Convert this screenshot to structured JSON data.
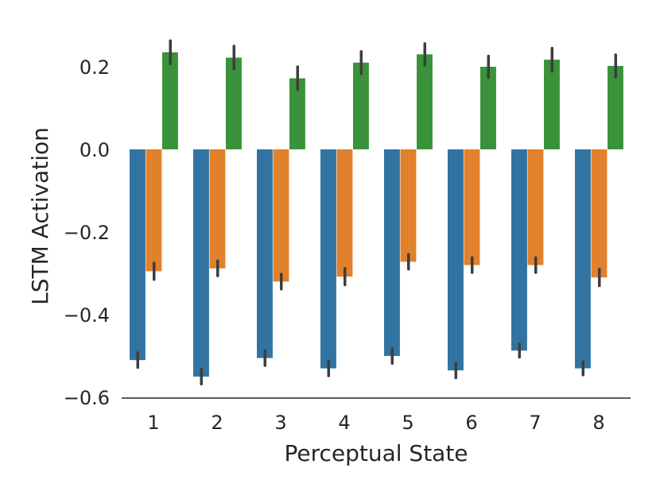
{
  "chart_data": {
    "type": "bar",
    "title": "",
    "xlabel": "Perceptual State",
    "ylabel": "LSTM Activation",
    "categories": [
      "1",
      "2",
      "3",
      "4",
      "5",
      "6",
      "7",
      "8"
    ],
    "ylim": [
      -0.6,
      0.3
    ],
    "yticks": [
      0.2,
      0.0,
      -0.2,
      -0.4,
      -0.6
    ],
    "ytick_labels": [
      "0.2",
      "0.0",
      "−0.2",
      "−0.4",
      "−0.6"
    ],
    "grid": false,
    "legend": "none",
    "error_bar_color": "#3d3d3d",
    "series": [
      {
        "name": "series-1",
        "color": "#3274a1",
        "values": [
          -0.51,
          -0.55,
          -0.505,
          -0.53,
          -0.5,
          -0.535,
          -0.487,
          -0.53
        ],
        "err_low": [
          -0.528,
          -0.568,
          -0.523,
          -0.548,
          -0.518,
          -0.553,
          -0.503,
          -0.546
        ],
        "err_high": [
          -0.492,
          -0.532,
          -0.487,
          -0.512,
          -0.482,
          -0.517,
          -0.471,
          -0.514
        ]
      },
      {
        "name": "series-2",
        "color": "#e1812c",
        "values": [
          -0.295,
          -0.288,
          -0.32,
          -0.308,
          -0.272,
          -0.28,
          -0.28,
          -0.31
        ],
        "err_low": [
          -0.315,
          -0.306,
          -0.338,
          -0.328,
          -0.29,
          -0.298,
          -0.298,
          -0.33
        ],
        "err_high": [
          -0.275,
          -0.27,
          -0.302,
          -0.288,
          -0.254,
          -0.262,
          -0.262,
          -0.29
        ]
      },
      {
        "name": "series-3",
        "color": "#3a923a",
        "values": [
          0.235,
          0.222,
          0.172,
          0.21,
          0.23,
          0.2,
          0.217,
          0.202
        ],
        "err_low": [
          0.207,
          0.195,
          0.145,
          0.183,
          0.204,
          0.174,
          0.189,
          0.175
        ],
        "err_high": [
          0.263,
          0.25,
          0.2,
          0.237,
          0.256,
          0.226,
          0.245,
          0.229
        ]
      }
    ]
  }
}
